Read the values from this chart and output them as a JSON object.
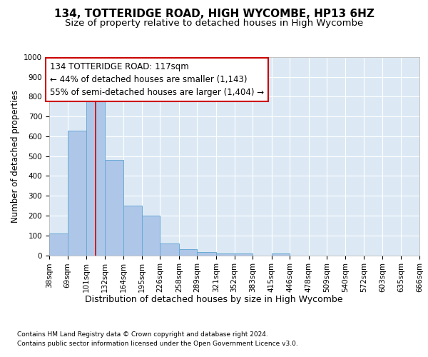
{
  "title1": "134, TOTTERIDGE ROAD, HIGH WYCOMBE, HP13 6HZ",
  "title2": "Size of property relative to detached houses in High Wycombe",
  "xlabel": "Distribution of detached houses by size in High Wycombe",
  "ylabel": "Number of detached properties",
  "footnote1": "Contains HM Land Registry data © Crown copyright and database right 2024.",
  "footnote2": "Contains public sector information licensed under the Open Government Licence v3.0.",
  "bar_edges": [
    38,
    69,
    101,
    132,
    164,
    195,
    226,
    258,
    289,
    321,
    352,
    383,
    415,
    446,
    478,
    509,
    540,
    572,
    603,
    635,
    666
  ],
  "bar_heights": [
    110,
    630,
    800,
    480,
    250,
    200,
    60,
    30,
    15,
    10,
    10,
    0,
    10,
    0,
    0,
    0,
    0,
    0,
    0,
    0
  ],
  "bar_color": "#aec6e8",
  "bar_edge_color": "#6aaad4",
  "background_color": "#dce9f5",
  "grid_color": "#ffffff",
  "vline_x": 117,
  "vline_color": "#cc0000",
  "ylim": [
    0,
    1000
  ],
  "yticks": [
    0,
    100,
    200,
    300,
    400,
    500,
    600,
    700,
    800,
    900,
    1000
  ],
  "annotation_title": "134 TOTTERIDGE ROAD: 117sqm",
  "annotation_line1": "← 44% of detached houses are smaller (1,143)",
  "annotation_line2": "55% of semi-detached houses are larger (1,404) →",
  "annotation_box_color": "#ffffff",
  "annotation_box_edge": "#cc0000",
  "title1_fontsize": 11,
  "title2_fontsize": 9.5,
  "xlabel_fontsize": 9,
  "ylabel_fontsize": 8.5,
  "tick_fontsize": 7.5,
  "ann_fontsize": 8.5
}
